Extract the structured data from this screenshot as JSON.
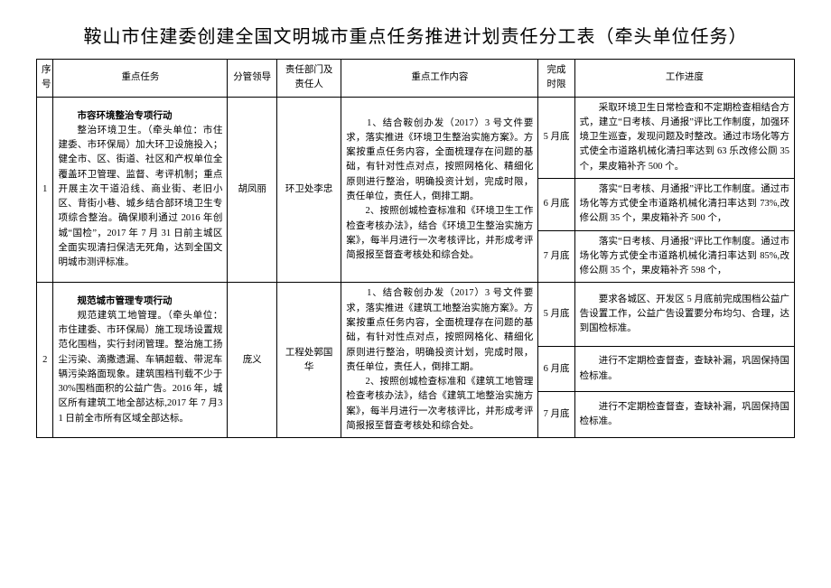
{
  "title": "鞍山市住建委创建全国文明城市重点任务推进计划责任分工表（牵头单位任务）",
  "headers": {
    "idx": "序号",
    "task": "重点任务",
    "leader": "分管领导",
    "resp": "责任部门及责任人",
    "work": "重点工作内容",
    "deadline": "完成时限",
    "progress": "工作进度"
  },
  "rows": [
    {
      "idx": "1",
      "task_title": "市容环境整治专项行动",
      "task_body": "整治环境卫生。（牵头单位：市住建委、市环保局）加大环卫设施投入；健全市、区、街道、社区和产权单位全覆盖环卫管理、监督、考评机制；重点开展主次干道沿线、商业街、老旧小区、背街小巷、城乡结合部环境卫生专项综合整治。确保顺利通过 2016 年创城“国检”，2017 年 7 月 31 日前主城区全面实现清扫保洁无死角，达到全国文明城市测评标准。",
      "leader": "胡凤丽",
      "resp": "环卫处李忠",
      "work": "　　1、结合鞍创办发（2017）3 号文件要求，落实推进《环境卫生整治实施方案》。方案按重点任务内容，全面梳理存在问题的基础，有针对性点对点，按照网格化、精细化原则进行整治，明确投资计划，完成时限，责任单位，责任人，倒排工期。\n　　2、按照创城检查标准和《环境卫生工作检查考核办法》，结合《环境卫生整治实施方案》，每半月进行一次考核评比，并形成考评简报报至督查考核处和综合处。",
      "periods": [
        {
          "deadline": "5 月底",
          "progress": "　　采取环境卫生日常检查和不定期检查相结合方式，建立“日考核、月通报”评比工作制度，加强环境卫生巡查，发现问题及时整改。通过市场化等方式使全市道路机械化清扫率达到 63 乐改修公厕 35 个，果皮箱补齐 500 个。"
        },
        {
          "deadline": "6 月底",
          "progress": "　　落实“日考核、月通报”评比工作制度。通过市场化等方式使全市道路机械化清扫率达到 73%,改修公厕 35 个，果皮箱补齐 500 个，"
        },
        {
          "deadline": "7 月底",
          "progress": "　　落实“日考核、月通报”评比工作制度。通过市场化等方式使全市道路机械化清扫率达到 85%,改修公厕 35 个，果皮箱补齐 598 个，"
        }
      ]
    },
    {
      "idx": "2",
      "task_title": "规范城市管理专项行动",
      "task_body": "规范建筑工地管理。（牵头单位：市住建委、市环保局）施工现场设置规范化围档，实行封闭管理。整治施工扬尘污染、滴撒遗漏、车辆超载、带泥车辆污染路面现象。建筑围档刊载不少于30%围档面积的公益广告。2016 年，城区所有建筑工地全部达标,2017 年 7 月31 日前全市所有区域全部达标。",
      "leader": "庞义",
      "resp": "工程处郭国华",
      "work": "　　1、结合鞍创办发（2017）3 号文件要求，落实推进《建筑工地整治实施方案》。方案按重点任务内容，全面梳理存在问题的基础，有针对性点对点，按照网格化、精细化原则进行整治，明确投资计划，完成时限，责任单位，责任人，倒排工期。\n　　2、按照创城检查标准和《建筑工地管理检查考核办法》，结合《建筑工地整治实施方案》，每半月进行一次考核评比，并形成考评简报报至督查考核处和综合处。",
      "periods": [
        {
          "deadline": "5 月底",
          "progress": "　　要求各城区、开发区 5 月底前完成围档公益广告设置工作，公益广告设置要分布均匀、合理，达到国检标准。"
        },
        {
          "deadline": "6 月底",
          "progress": "　　进行不定期检查督查，查缺补漏，巩固保持国检标准。"
        },
        {
          "deadline": "7 月底",
          "progress": "　　进行不定期检查督查，查缺补漏，巩固保持国检标准。"
        }
      ]
    }
  ]
}
